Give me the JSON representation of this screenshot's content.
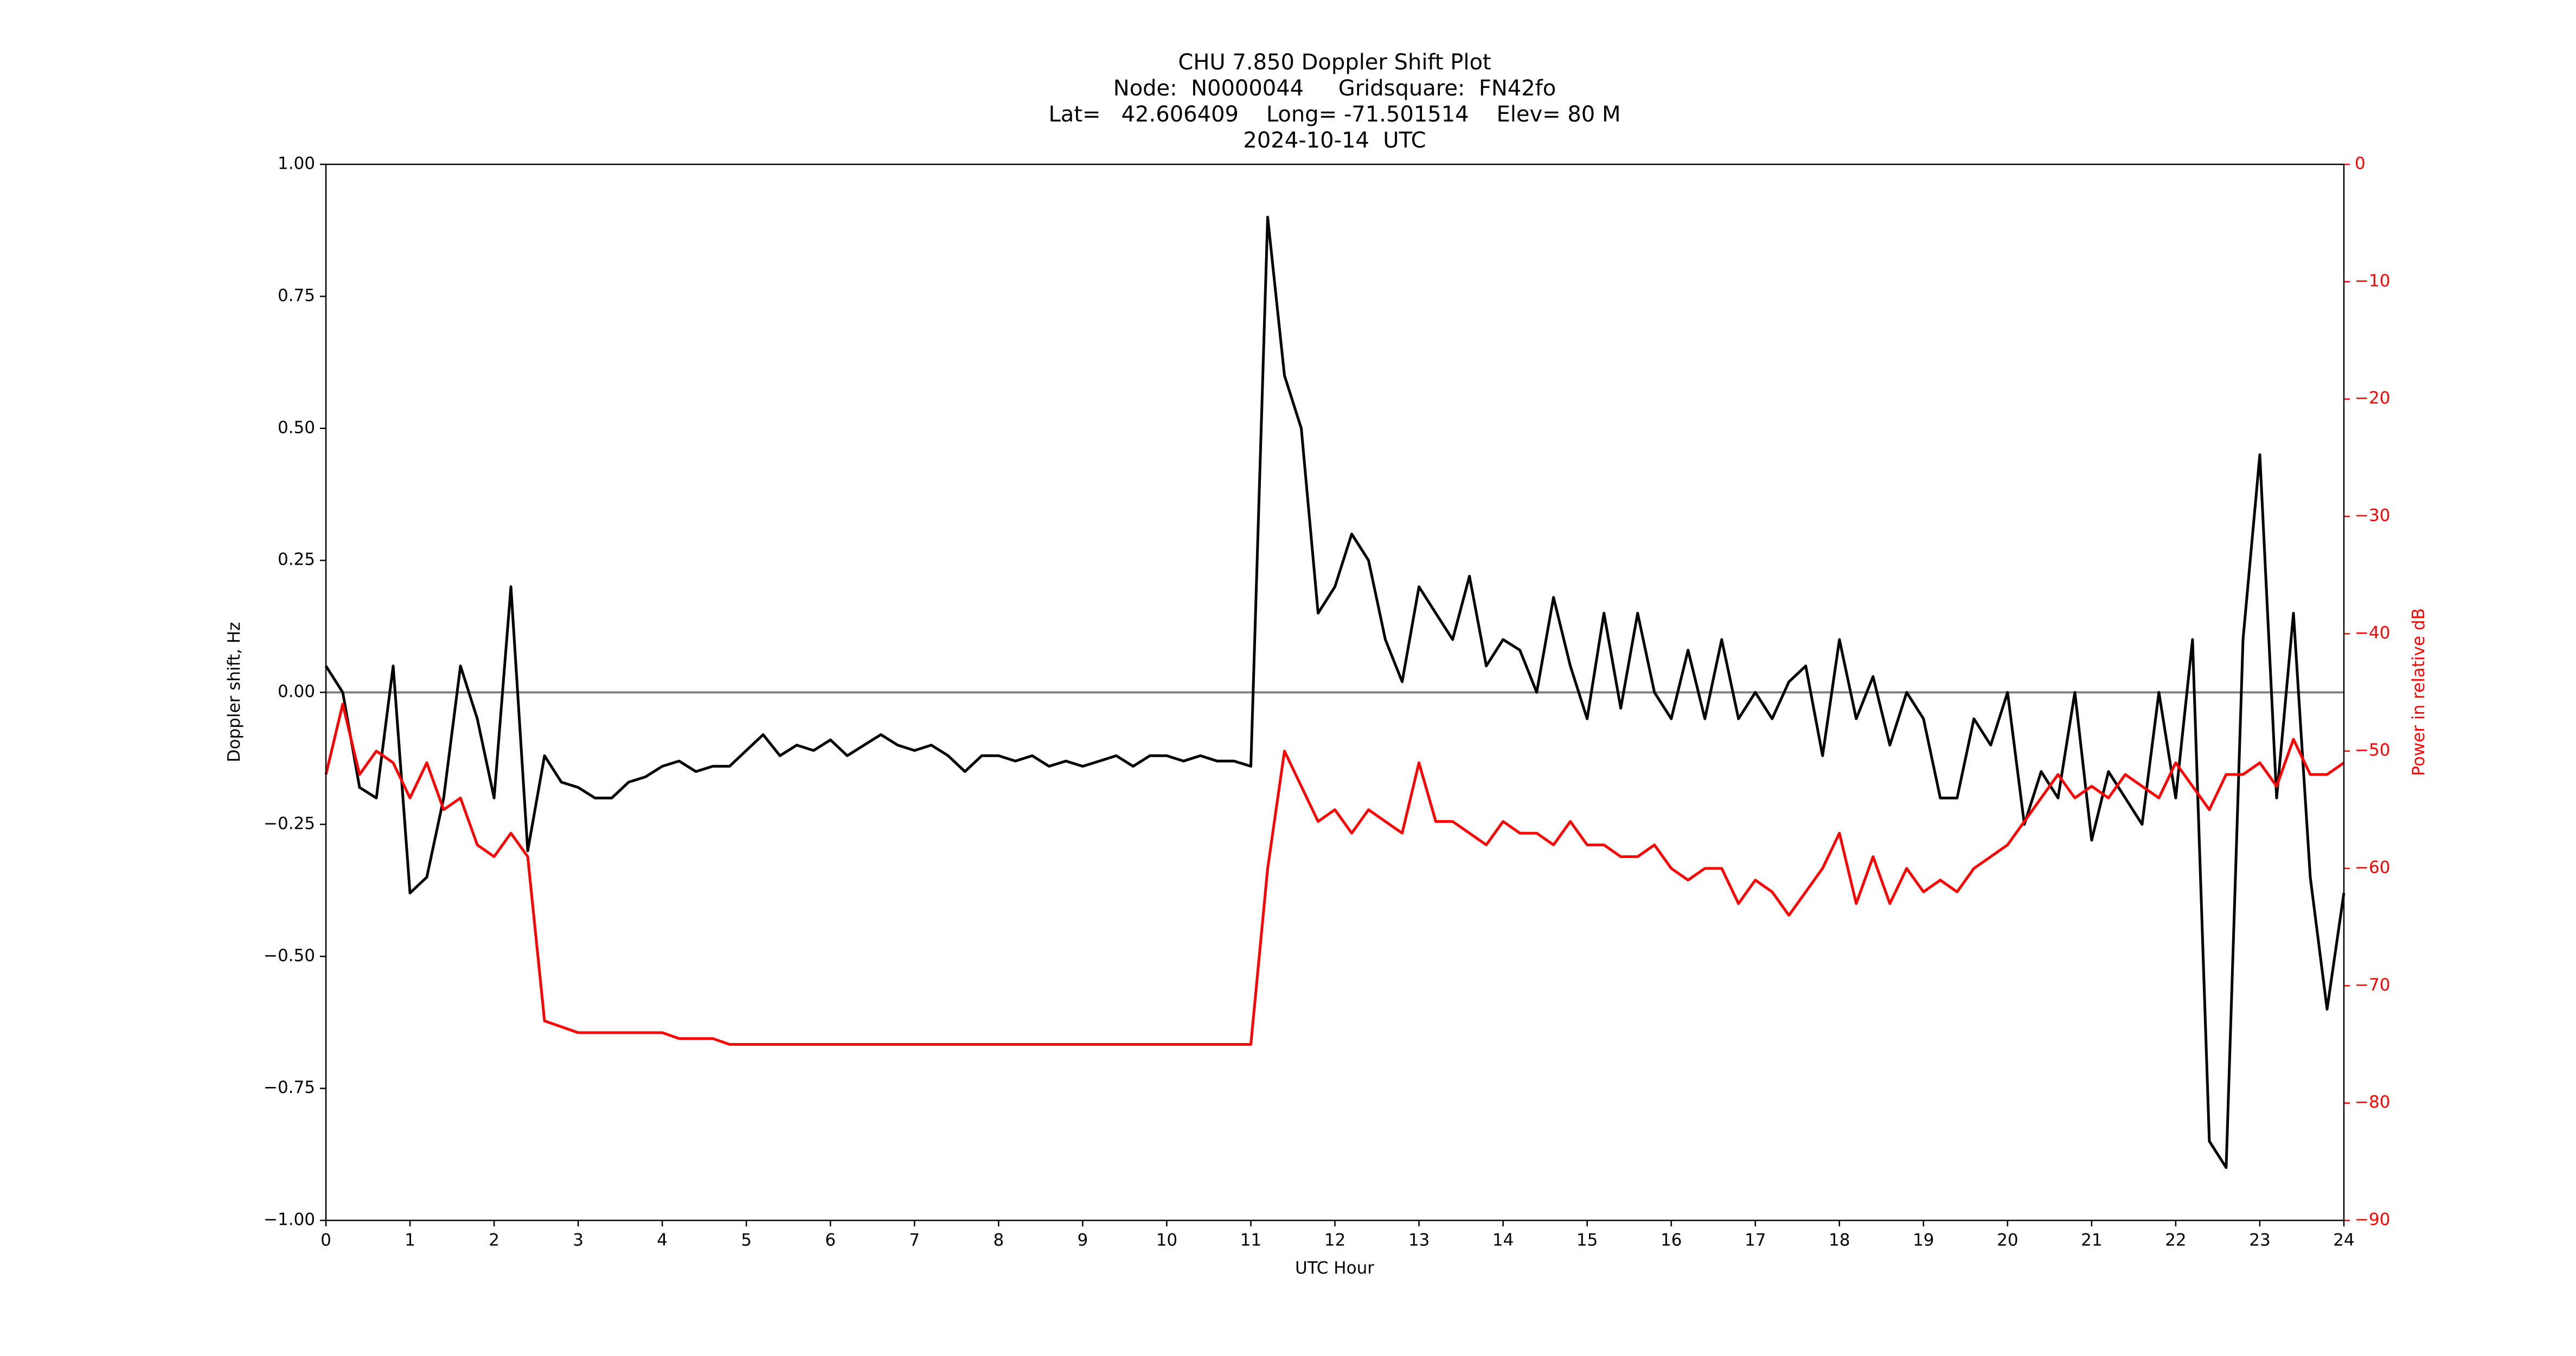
{
  "chart_data": {
    "type": "line",
    "title": "CHU 7.850 Doppler Shift Plot",
    "subtitle": [
      "Node:  N0000044     Gridsquare:  FN42fo",
      "Lat=   42.606409    Long= -71.501514    Elev= 80 M",
      "2024-10-14  UTC"
    ],
    "x_label": "UTC Hour",
    "y_label": "Doppler shift, Hz",
    "y2_label": "Power in relative dB",
    "y2_color": "#ff0000",
    "hline": 0,
    "hline_color": "#808080",
    "xlim": [
      0,
      24
    ],
    "xticks": [
      0,
      1,
      2,
      3,
      4,
      5,
      6,
      7,
      8,
      9,
      10,
      11,
      12,
      13,
      14,
      15,
      16,
      17,
      18,
      19,
      20,
      21,
      22,
      23,
      24
    ],
    "ylim": [
      -1,
      1
    ],
    "yticks": [
      {
        "value": -1,
        "label": "−1.00"
      },
      {
        "value": -0.75,
        "label": "−0.75"
      },
      {
        "value": -0.5,
        "label": "−0.50"
      },
      {
        "value": -0.25,
        "label": "−0.25"
      },
      {
        "value": 0,
        "label": "0.00"
      },
      {
        "value": 0.25,
        "label": "0.25"
      },
      {
        "value": 0.5,
        "label": "0.50"
      },
      {
        "value": 0.75,
        "label": "0.75"
      },
      {
        "value": 1,
        "label": "1.00"
      }
    ],
    "y2lim": [
      -90,
      0
    ],
    "y2ticks": [
      {
        "value": -90,
        "label": "−90"
      },
      {
        "value": -80,
        "label": "−80"
      },
      {
        "value": -70,
        "label": "−70"
      },
      {
        "value": -60,
        "label": "−60"
      },
      {
        "value": -50,
        "label": "−50"
      },
      {
        "value": -40,
        "label": "−40"
      },
      {
        "value": -30,
        "label": "−30"
      },
      {
        "value": -20,
        "label": "−20"
      },
      {
        "value": -10,
        "label": "−10"
      },
      0
    ],
    "x": [
      0,
      0.2,
      0.4,
      0.6,
      0.8,
      1.0,
      1.2,
      1.4,
      1.6,
      1.8,
      2.0,
      2.2,
      2.4,
      2.6,
      2.8,
      3.0,
      3.2,
      3.4,
      3.6,
      3.8,
      4.0,
      4.2,
      4.4,
      4.6,
      4.8,
      5.0,
      5.2,
      5.4,
      5.6,
      5.8,
      6.0,
      6.2,
      6.4,
      6.6,
      6.8,
      7.0,
      7.2,
      7.4,
      7.6,
      7.8,
      8.0,
      8.2,
      8.4,
      8.6,
      8.8,
      9.0,
      9.2,
      9.4,
      9.6,
      9.8,
      10.0,
      10.2,
      10.4,
      10.6,
      10.8,
      11.0,
      11.2,
      11.4,
      11.6,
      11.8,
      12.0,
      12.2,
      12.4,
      12.6,
      12.8,
      13.0,
      13.2,
      13.4,
      13.6,
      13.8,
      14.0,
      14.2,
      14.4,
      14.6,
      14.8,
      15.0,
      15.2,
      15.4,
      15.6,
      15.8,
      16.0,
      16.2,
      16.4,
      16.6,
      16.8,
      17.0,
      17.2,
      17.4,
      17.6,
      17.8,
      18.0,
      18.2,
      18.4,
      18.6,
      18.8,
      19.0,
      19.2,
      19.4,
      19.6,
      19.8,
      20.0,
      20.2,
      20.4,
      20.6,
      20.8,
      21.0,
      21.2,
      21.4,
      21.6,
      21.8,
      22.0,
      22.2,
      22.4,
      22.6,
      22.8,
      23.0,
      23.2,
      23.4,
      23.6,
      23.8,
      24.0
    ],
    "series": [
      {
        "color": "#000000",
        "values": [
          0.05,
          0.0,
          -0.18,
          -0.2,
          0.05,
          -0.38,
          -0.35,
          -0.2,
          0.05,
          -0.05,
          -0.2,
          0.2,
          -0.3,
          -0.12,
          -0.17,
          -0.18,
          -0.2,
          -0.2,
          -0.17,
          -0.16,
          -0.14,
          -0.13,
          -0.15,
          -0.14,
          -0.14,
          -0.11,
          -0.08,
          -0.12,
          -0.1,
          -0.11,
          -0.09,
          -0.12,
          -0.1,
          -0.08,
          -0.1,
          -0.11,
          -0.1,
          -0.12,
          -0.15,
          -0.12,
          -0.12,
          -0.13,
          -0.12,
          -0.14,
          -0.13,
          -0.14,
          -0.13,
          -0.12,
          -0.14,
          -0.12,
          -0.12,
          -0.13,
          -0.12,
          -0.13,
          -0.13,
          -0.14,
          0.9,
          0.6,
          0.5,
          0.15,
          0.2,
          0.3,
          0.25,
          0.1,
          0.02,
          0.2,
          0.15,
          0.1,
          0.22,
          0.05,
          0.1,
          0.08,
          0.0,
          0.18,
          0.05,
          -0.05,
          0.15,
          -0.03,
          0.15,
          0.0,
          -0.05,
          0.08,
          -0.05,
          0.1,
          -0.05,
          0.0,
          -0.05,
          0.02,
          0.05,
          -0.12,
          0.1,
          -0.05,
          0.03,
          -0.1,
          0.0,
          -0.05,
          -0.2,
          -0.2,
          -0.05,
          -0.1,
          0.0,
          -0.25,
          -0.15,
          -0.2,
          0.0,
          -0.28,
          -0.15,
          -0.2,
          -0.25,
          0.0,
          -0.2,
          0.1,
          -0.85,
          -0.9,
          0.1,
          0.45,
          -0.2,
          0.15,
          -0.35,
          -0.6,
          -0.38
        ]
      },
      {
        "color": "#ff0000",
        "axis": "y2",
        "values": [
          -52,
          -46,
          -52,
          -50,
          -51,
          -54,
          -51,
          -55,
          -54,
          -58,
          -59,
          -57,
          -59,
          -73,
          -73.5,
          -74,
          -74,
          -74,
          -74,
          -74,
          -74,
          -74.5,
          -74.5,
          -74.5,
          -75,
          -75,
          -75,
          -75,
          -75,
          -75,
          -75,
          -75,
          -75,
          -75,
          -75,
          -75,
          -75,
          -75,
          -75,
          -75,
          -75,
          -75,
          -75,
          -75,
          -75,
          -75,
          -75,
          -75,
          -75,
          -75,
          -75,
          -75,
          -75,
          -75,
          -75,
          -75,
          -60,
          -50,
          -53,
          -56,
          -55,
          -57,
          -55,
          -56,
          -57,
          -51,
          -56,
          -56,
          -57,
          -58,
          -56,
          -57,
          -57,
          -58,
          -56,
          -58,
          -58,
          -59,
          -59,
          -58,
          -60,
          -61,
          -60,
          -60,
          -63,
          -61,
          -62,
          -64,
          -62,
          -60,
          -57,
          -63,
          -59,
          -63,
          -60,
          -62,
          -61,
          -62,
          -60,
          -59,
          -58,
          -56,
          -54,
          -52,
          -54,
          -53,
          -54,
          -52,
          -53,
          -54,
          -51,
          -53,
          -55,
          -52,
          -52,
          -51,
          -53,
          -49,
          -52,
          -52,
          -51
        ]
      }
    ]
  }
}
